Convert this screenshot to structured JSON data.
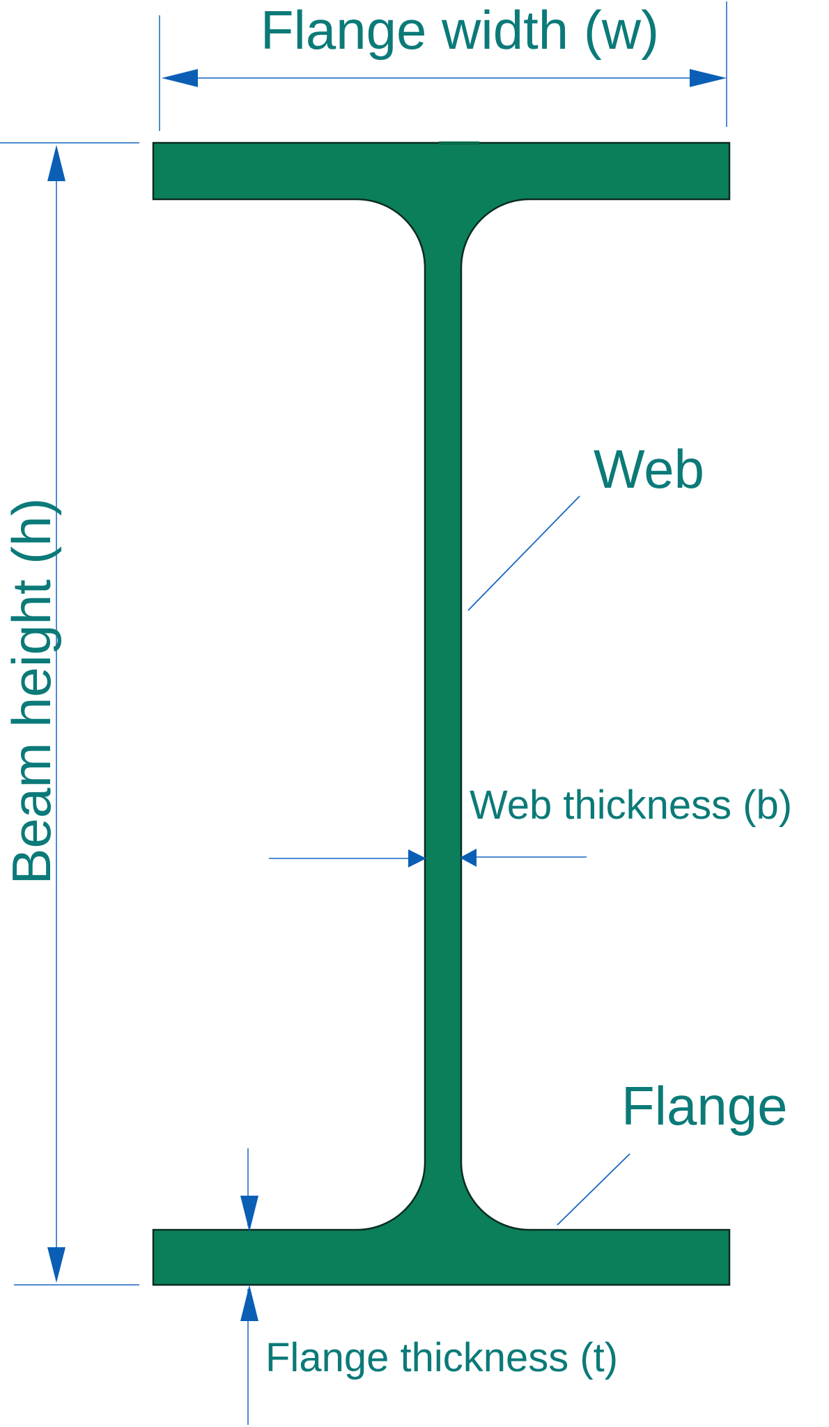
{
  "diagram": {
    "labels": {
      "flange_width": "Flange width (w)",
      "beam_height": "Beam height (h)",
      "web": "Web",
      "web_thickness": "Web thickness (b)",
      "flange": "Flange",
      "flange_thickness": "Flange thickness (t)"
    },
    "colors": {
      "beam_fill": "#0a7f5a",
      "beam_outline": "#0a2a22",
      "dimension_line": "#1565c0",
      "arrow": "#0a5fb4",
      "label_text": "#0b7a78"
    }
  }
}
